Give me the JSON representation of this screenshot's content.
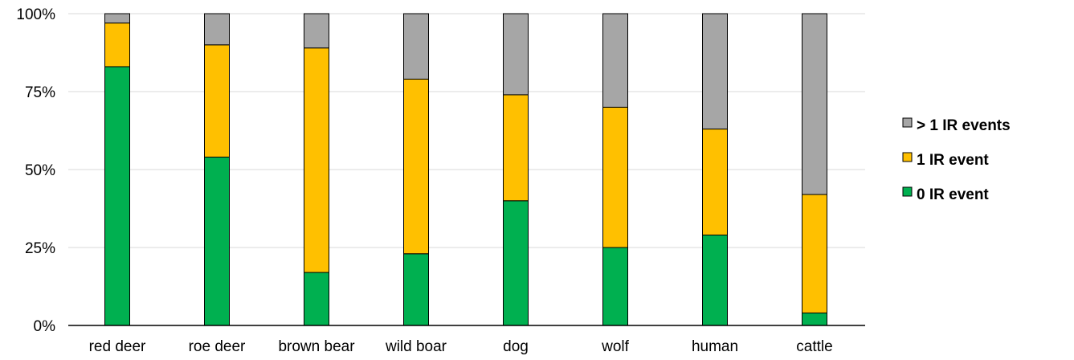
{
  "chart_data": {
    "type": "bar",
    "stacked": true,
    "percent": true,
    "categories": [
      "red deer",
      "roe deer",
      "brown bear",
      "wild boar",
      "dog",
      "wolf",
      "human",
      "cattle"
    ],
    "series": [
      {
        "name": "0 IR event",
        "color": "#00b050",
        "values": [
          83,
          54,
          17,
          23,
          40,
          25,
          29,
          4
        ]
      },
      {
        "name": "1 IR event",
        "color": "#ffc000",
        "values": [
          14,
          36,
          72,
          56,
          34,
          45,
          34,
          38
        ]
      },
      {
        "name": "> 1 IR events",
        "color": "#a6a6a6",
        "values": [
          3,
          10,
          11,
          21,
          26,
          30,
          37,
          58
        ]
      }
    ],
    "yticks": [
      "0%",
      "25%",
      "50%",
      "75%",
      "100%"
    ],
    "ylim": [
      0,
      100
    ],
    "grid": true,
    "legend": {
      "position": "right",
      "order": [
        "> 1 IR events",
        "1 IR event",
        "0 IR event"
      ]
    }
  }
}
